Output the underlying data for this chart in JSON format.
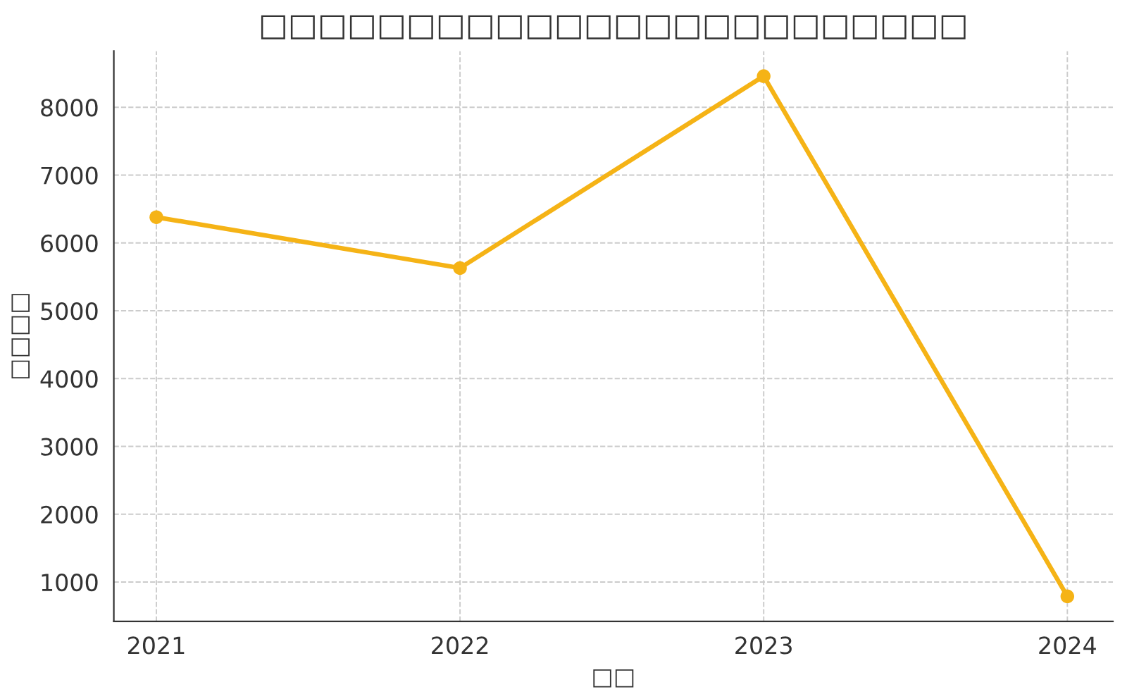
{
  "chart_data": {
    "type": "line",
    "title": "□□□□□□□□□□□□□□□□□□□□□□□□",
    "xlabel": "□□",
    "ylabel": "□□□□",
    "x": [
      2021,
      2022,
      2023,
      2024
    ],
    "series": [
      {
        "color": "#f5b316",
        "values": [
          6380,
          5630,
          8460,
          790
        ]
      }
    ],
    "xlim": [
      2020.86,
      2024.15
    ],
    "xticks": [
      2021,
      2022,
      2023,
      2024
    ],
    "ylim": [
      420,
      8830
    ],
    "yticks": [
      1000,
      2000,
      3000,
      4000,
      5000,
      6000,
      7000,
      8000
    ],
    "grid": true,
    "marker": "circle",
    "line_style": "solid",
    "legend": false
  }
}
